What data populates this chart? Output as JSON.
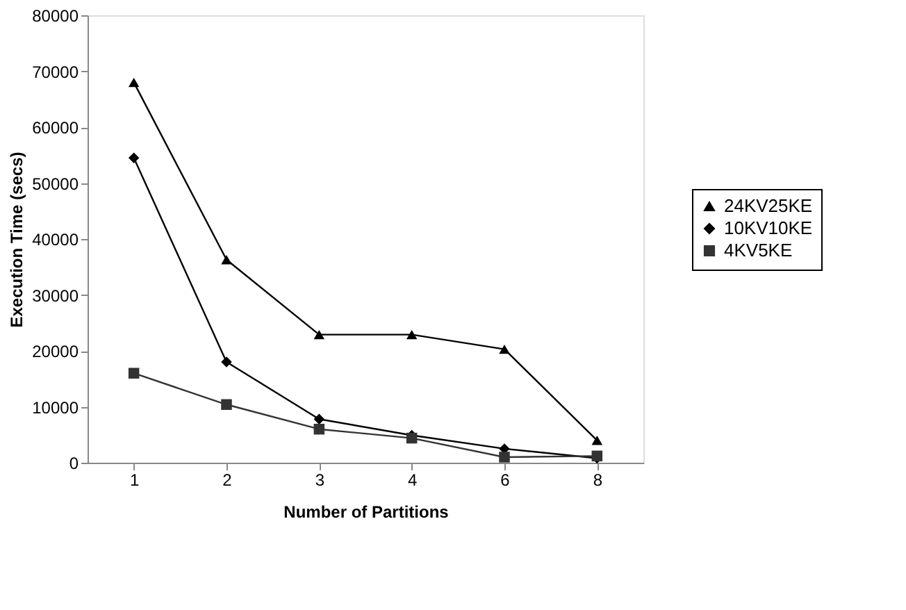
{
  "chart_data": {
    "type": "line",
    "xlabel": "Number of Partitions",
    "ylabel": "Execution Time (secs)",
    "categories": [
      "1",
      "2",
      "3",
      "4",
      "6",
      "8"
    ],
    "series": [
      {
        "name": "24KV25KE",
        "color": "#000000",
        "marker": "triangle",
        "values": [
          68000,
          36300,
          22900,
          22900,
          20300,
          4000
        ]
      },
      {
        "name": "10KV10KE",
        "color": "#000000",
        "marker": "diamond",
        "values": [
          54500,
          18000,
          7800,
          4900,
          2500,
          800
        ]
      },
      {
        "name": "4KV5KE",
        "color": "#333333",
        "marker": "square",
        "values": [
          16000,
          10400,
          6000,
          4400,
          1000,
          1200
        ]
      }
    ],
    "ylim": [
      0,
      80000
    ],
    "yticks": [
      0,
      10000,
      20000,
      30000,
      40000,
      50000,
      60000,
      70000,
      80000
    ],
    "grid": false,
    "legend": "right",
    "line_style": "solid"
  }
}
